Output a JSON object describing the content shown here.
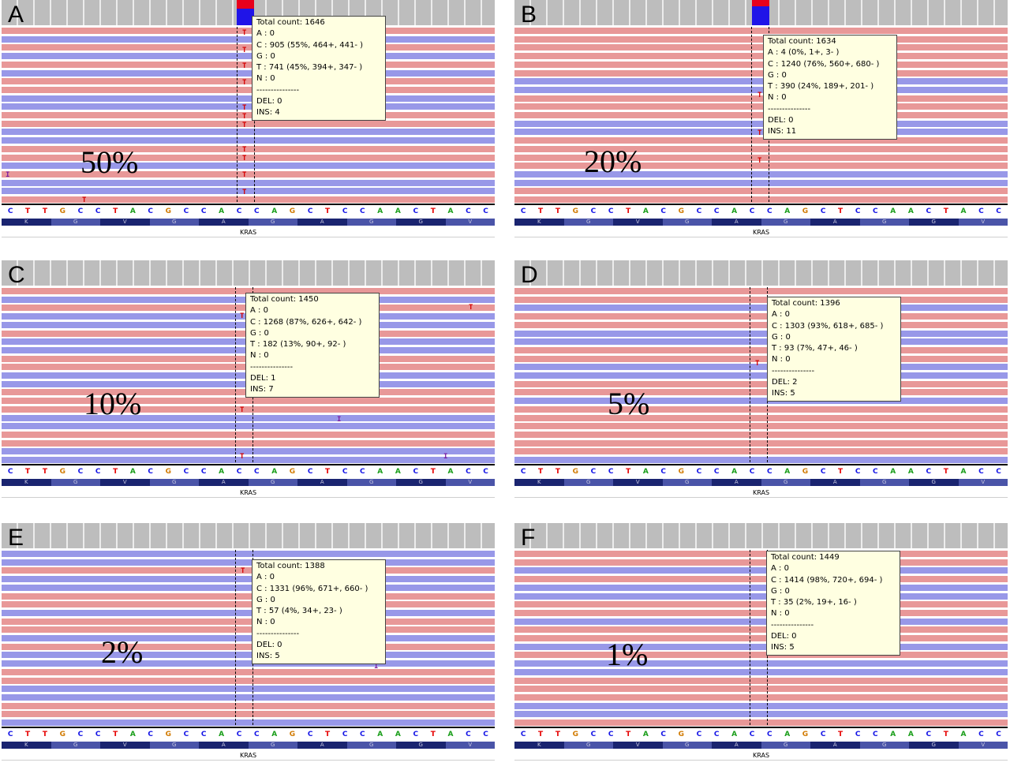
{
  "sequence": [
    "C",
    "T",
    "T",
    "G",
    "C",
    "C",
    "T",
    "A",
    "C",
    "G",
    "C",
    "C",
    "A",
    "C",
    "C",
    "A",
    "G",
    "C",
    "T",
    "C",
    "C",
    "A",
    "A",
    "C",
    "T",
    "A",
    "C",
    "C"
  ],
  "base_colors": {
    "A": "#1a9e1a",
    "C": "#1414e6",
    "G": "#d17a00",
    "T": "#e60000"
  },
  "amino_acids": [
    "K",
    "G",
    "V",
    "G",
    "A",
    "G",
    "A",
    "G",
    "G",
    "V"
  ],
  "gene": "KRAS",
  "read_colors": {
    "forward": "#e89898",
    "reverse": "#9898e8",
    "mismatch": "#d40000"
  },
  "panels": [
    {
      "letter": "A",
      "percent": "50%",
      "tooltip": {
        "total": "Total count: 1646",
        "a": "A : 0",
        "c": "C : 905 (55%, 464+, 441- )",
        "g": "G : 0",
        "t": "T : 741 (45%, 394+, 347- )",
        "n": "N : 0",
        "sep": "---------------",
        "del": "DEL: 0",
        "ins": "INS: 4"
      }
    },
    {
      "letter": "B",
      "percent": "20%",
      "tooltip": {
        "total": "Total count: 1634",
        "a": "A : 4 (0%, 1+, 3- )",
        "c": "C : 1240 (76%, 560+, 680- )",
        "g": "G : 0",
        "t": "T : 390 (24%, 189+, 201- )",
        "n": "N : 0",
        "sep": "---------------",
        "del": "DEL: 0",
        "ins": "INS: 11"
      }
    },
    {
      "letter": "C",
      "percent": "10%",
      "tooltip": {
        "total": "Total count: 1450",
        "a": "A : 0",
        "c": "C : 1268 (87%, 626+, 642- )",
        "g": "G : 0",
        "t": "T : 182 (13%, 90+, 92- )",
        "n": "N : 0",
        "sep": "---------------",
        "del": "DEL: 1",
        "ins": "INS: 7"
      }
    },
    {
      "letter": "D",
      "percent": "5%",
      "tooltip": {
        "total": "Total count: 1396",
        "a": "A : 0",
        "c": "C : 1303 (93%, 618+, 685- )",
        "g": "G : 0",
        "t": "T : 93 (7%, 47+, 46- )",
        "n": "N : 0",
        "sep": "---------------",
        "del": "DEL: 2",
        "ins": "INS: 5"
      }
    },
    {
      "letter": "E",
      "percent": "2%",
      "tooltip": {
        "total": "Total count: 1388",
        "a": "A : 0",
        "c": "C : 1331 (96%, 671+, 660- )",
        "g": "G : 0",
        "t": "T : 57 (4%, 34+, 23- )",
        "n": "N : 0",
        "sep": "---------------",
        "del": "DEL: 0",
        "ins": "INS: 5"
      }
    },
    {
      "letter": "F",
      "percent": "1%",
      "tooltip": {
        "total": "Total count: 1449",
        "a": "A : 0",
        "c": "C : 1414 (98%, 720+, 694- )",
        "g": "G : 0",
        "t": "T : 35 (2%, 19+, 16- )",
        "n": "N : 0",
        "sep": "---------------",
        "del": "DEL: 0",
        "ins": "INS: 5"
      }
    }
  ]
}
